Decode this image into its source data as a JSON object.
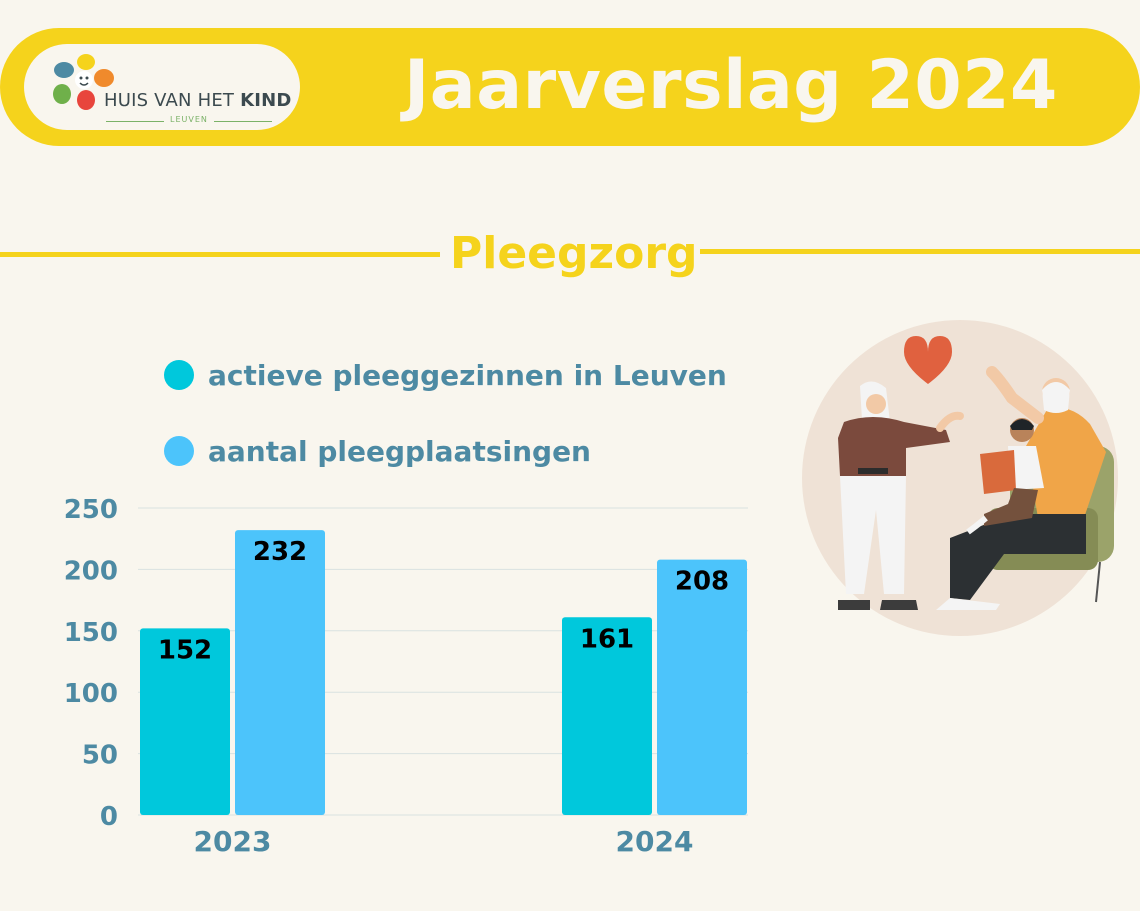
{
  "header": {
    "title": "Jaarverslag 2024",
    "logo": {
      "name_plain": "HUIS VAN HET",
      "name_bold": "KIND",
      "city": "LEUVEN"
    }
  },
  "section": {
    "title": "Pleegzorg"
  },
  "colors": {
    "header_yellow": "#f5d31c",
    "series_1": "#00c8dc",
    "series_2": "#4cc4fb",
    "axis_text": "#4d8aa3",
    "background": "#f9f6ee"
  },
  "chart_data": {
    "type": "bar",
    "categories": [
      "2023",
      "2024"
    ],
    "series": [
      {
        "name": "actieve pleeggezinnen in Leuven",
        "values": [
          152,
          161
        ]
      },
      {
        "name": "aantal pleegplaatsingen",
        "values": [
          232,
          208
        ]
      }
    ],
    "yticks": [
      "0",
      "50",
      "100",
      "150",
      "200",
      "250"
    ],
    "ylim": [
      0,
      250
    ],
    "grid": true,
    "legend_position": "top-left",
    "data_labels": true
  }
}
